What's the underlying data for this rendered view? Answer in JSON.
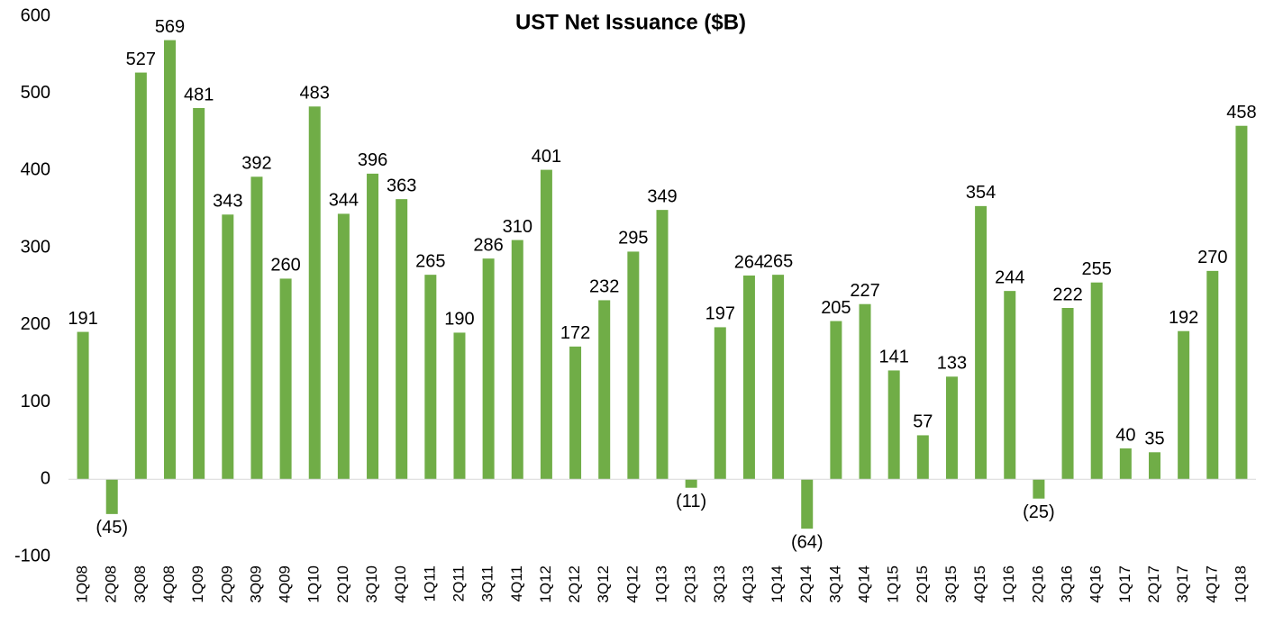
{
  "chart_data": {
    "type": "bar",
    "title": "UST Net Issuance ($B)",
    "categories": [
      "1Q08",
      "2Q08",
      "3Q08",
      "4Q08",
      "1Q09",
      "2Q09",
      "3Q09",
      "4Q09",
      "1Q10",
      "2Q10",
      "3Q10",
      "4Q10",
      "1Q11",
      "2Q11",
      "3Q11",
      "4Q11",
      "1Q12",
      "2Q12",
      "3Q12",
      "4Q12",
      "1Q13",
      "2Q13",
      "3Q13",
      "4Q13",
      "1Q14",
      "2Q14",
      "3Q14",
      "4Q14",
      "1Q15",
      "2Q15",
      "3Q15",
      "4Q15",
      "1Q16",
      "2Q16",
      "3Q16",
      "4Q16",
      "1Q17",
      "2Q17",
      "3Q17",
      "4Q17",
      "1Q18"
    ],
    "values": [
      191,
      -45,
      527,
      569,
      481,
      343,
      392,
      260,
      483,
      344,
      396,
      363,
      265,
      190,
      286,
      310,
      401,
      172,
      232,
      295,
      349,
      -11,
      197,
      264,
      265,
      -64,
      205,
      227,
      141,
      57,
      133,
      354,
      244,
      -25,
      222,
      255,
      40,
      35,
      192,
      270,
      458
    ],
    "value_labels": [
      "191",
      "(45)",
      "527",
      "569",
      "481",
      "343",
      "392",
      "260",
      "483",
      "344",
      "396",
      "363",
      "265",
      "190",
      "286",
      "310",
      "401",
      "172",
      "232",
      "295",
      "349",
      "(11)",
      "197",
      "264",
      "265",
      "(64)",
      "205",
      "227",
      "141",
      "57",
      "133",
      "354",
      "244",
      "(25)",
      "222",
      "255",
      "40",
      "35",
      "192",
      "270",
      "458"
    ],
    "color": "#70ad47",
    "ylim": [
      -100,
      600
    ],
    "yticks": [
      -100,
      0,
      100,
      200,
      300,
      400,
      500,
      600
    ],
    "grid": false
  }
}
